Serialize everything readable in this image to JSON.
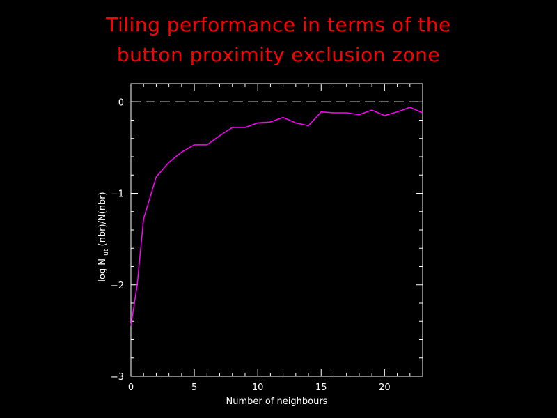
{
  "page": {
    "title_line1": "Tiling performance in terms of the",
    "title_line2": "button proximity exclusion zone"
  },
  "colors": {
    "background": "#000000",
    "title": "#ff0000",
    "axes": "#ffffff",
    "series": "#ff00ff"
  },
  "chart_data": {
    "type": "line",
    "xlabel": "Number of neighbours",
    "ylabel_parts": {
      "pre": "log N",
      "sub": "ut",
      "post": "(nbr)/N(nbr)"
    },
    "xlim": [
      0,
      23
    ],
    "ylim": [
      -3,
      0.2
    ],
    "x_ticks": [
      0,
      5,
      10,
      15,
      20
    ],
    "y_ticks": [
      0,
      -1,
      -2,
      -3
    ],
    "reference_line": {
      "y": 0,
      "style": "dashed"
    },
    "series": [
      {
        "x": [
          0,
          0.5,
          1,
          2,
          3,
          4,
          5,
          6,
          7,
          8,
          9,
          10,
          11,
          12,
          13,
          14,
          15,
          16,
          17,
          18,
          19,
          20,
          21,
          22,
          23
        ],
        "y": [
          -2.45,
          -2.0,
          -1.28,
          -0.82,
          -0.66,
          -0.55,
          -0.47,
          -0.47,
          -0.37,
          -0.28,
          -0.28,
          -0.23,
          -0.22,
          -0.17,
          -0.23,
          -0.26,
          -0.11,
          -0.12,
          -0.12,
          -0.14,
          -0.09,
          -0.15,
          -0.11,
          -0.06,
          -0.12
        ]
      }
    ]
  }
}
